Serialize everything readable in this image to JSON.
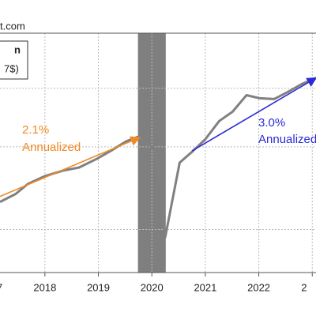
{
  "chart_data": {
    "type": "line",
    "source_text": "t.com",
    "legend_texts": [
      "n",
      "7$)"
    ],
    "xlim": [
      2017.16,
      2023.07
    ],
    "ylim": [
      0,
      100
    ],
    "ygrid": [
      18,
      52.5,
      77
    ],
    "xticks": [
      {
        "value": 2017,
        "label": "7"
      },
      2018,
      2019,
      2020,
      2021,
      2022,
      {
        "value": 2023,
        "label": "2"
      }
    ],
    "recession": [
      2019.74,
      2020.26
    ],
    "recession_color": "#7f7f7f",
    "series": [
      {
        "color": "#808080",
        "x": [
          2017.16,
          2017.45,
          2017.68,
          2018.0,
          2018.34,
          2018.64,
          2018.97,
          2019.23,
          2019.52,
          2019.74,
          2020.0,
          2020.11,
          2020.25,
          2020.52,
          2020.77,
          2021.0,
          2021.26,
          2021.51,
          2021.77,
          2022.02,
          2022.29,
          2022.54,
          2022.8,
          2023.07
        ],
        "values": [
          29.5,
          32.8,
          37.0,
          40.3,
          42.6,
          43.9,
          47.5,
          50.8,
          54.8,
          56.7,
          52.5,
          47.5,
          14.8,
          45.9,
          50.8,
          55.7,
          63.3,
          67.2,
          74.1,
          72.8,
          72.5,
          75.4,
          78.7,
          81.3
        ]
      }
    ],
    "trends": [
      {
        "color": "#f08a24",
        "x": [
          2017.16,
          2019.77
        ],
        "values": [
          31.8,
          56.4
        ],
        "labels": [
          "2.1%",
          "Annualized"
        ]
      },
      {
        "color": "#2b2bd6",
        "x": [
          2020.75,
          2023.07
        ],
        "values": [
          50.8,
          81.3
        ],
        "labels": [
          "3.0%",
          "Annualized"
        ]
      }
    ]
  }
}
